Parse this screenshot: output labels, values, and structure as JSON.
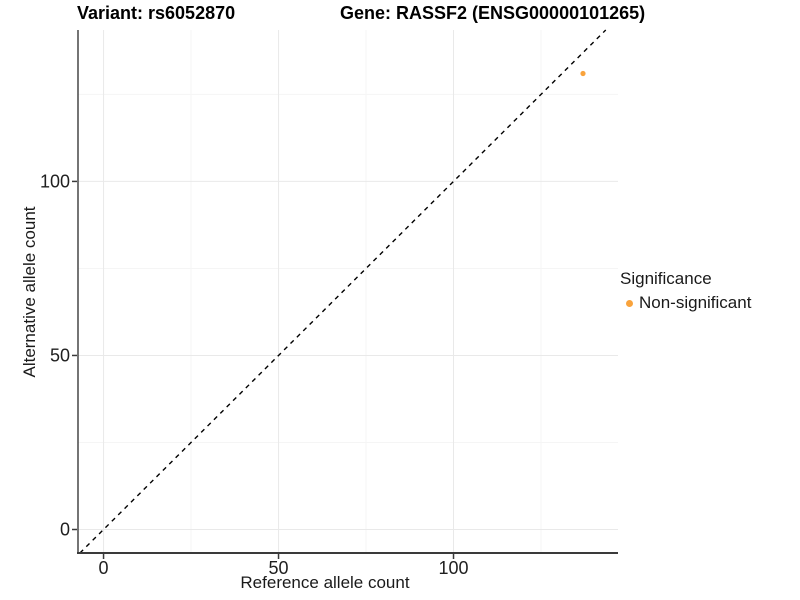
{
  "chart_data": {
    "type": "scatter",
    "titles": {
      "left": "Variant: rs6052870",
      "right": "Gene: RASSF2 (ENSG00000101265)"
    },
    "xlabel": "Reference allele count",
    "ylabel": "Alternative allele count",
    "x_ticks": [
      0,
      50,
      100
    ],
    "y_ticks": [
      0,
      50,
      100
    ],
    "x_minor_ticks": [
      25,
      75,
      125
    ],
    "y_minor_ticks": [
      25,
      75,
      125
    ],
    "xlim": [
      -7.3,
      147.0
    ],
    "ylim": [
      -6.75,
      143.5
    ],
    "grid": "major+minor",
    "legend_position": "right",
    "series": [
      {
        "name": "Non-significant",
        "color": "#F9A33C",
        "points": [
          {
            "x": 137,
            "y": 131
          }
        ]
      }
    ],
    "reference_line": {
      "kind": "identity",
      "slope": 1,
      "intercept": 0,
      "style": "dashed",
      "color": "#000000"
    },
    "legend": {
      "title": "Significance",
      "entries": [
        {
          "label": "Non-significant",
          "color": "#F9A33C"
        }
      ]
    }
  },
  "colors": {
    "background": "#FFFFFF",
    "grid_major": "#E9E9E9",
    "grid_minor": "#F5F5F5",
    "axis_line": "#3A3A3A",
    "tick_text": "#1F1F1F",
    "title_text": "#000000"
  }
}
